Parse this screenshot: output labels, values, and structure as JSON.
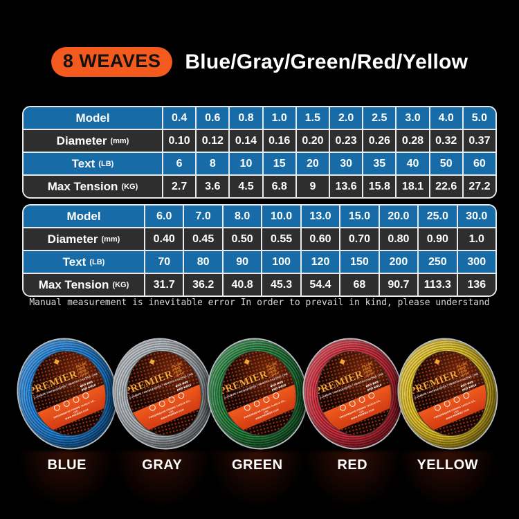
{
  "header": {
    "badge": "8 WEAVES",
    "title": "Blue/Gray/Green/Red/Yellow"
  },
  "colors": {
    "background": "#000000",
    "accent_orange": "#F4591D",
    "table_header_blue": "#176CA8",
    "table_row_dark": "#2E2E2E",
    "table_border": "#E8EBEE",
    "band_orange": "#E84D1B",
    "brand_gold": "#F3A63A"
  },
  "tables": [
    {
      "rows": [
        {
          "label": "Model",
          "unit": "",
          "values": [
            "0.4",
            "0.6",
            "0.8",
            "1.0",
            "1.5",
            "2.0",
            "2.5",
            "3.0",
            "4.0",
            "5.0"
          ]
        },
        {
          "label": "Diameter",
          "unit": "(mm)",
          "values": [
            "0.10",
            "0.12",
            "0.14",
            "0.16",
            "0.20",
            "0.23",
            "0.26",
            "0.28",
            "0.32",
            "0.37"
          ]
        },
        {
          "label": "Text",
          "unit": "(LB)",
          "values": [
            "6",
            "8",
            "10",
            "15",
            "20",
            "30",
            "35",
            "40",
            "50",
            "60"
          ]
        },
        {
          "label": "Max Tension",
          "unit": "(KG)",
          "values": [
            "2.7",
            "3.6",
            "4.5",
            "6.8",
            "9",
            "13.6",
            "15.8",
            "18.1",
            "22.6",
            "27.2"
          ]
        }
      ]
    },
    {
      "rows": [
        {
          "label": "Model",
          "unit": "",
          "values": [
            "6.0",
            "7.0",
            "8.0",
            "10.0",
            "13.0",
            "15.0",
            "20.0",
            "25.0",
            "30.0"
          ]
        },
        {
          "label": "Diameter",
          "unit": "(mm)",
          "values": [
            "0.40",
            "0.45",
            "0.50",
            "0.55",
            "0.60",
            "0.70",
            "0.80",
            "0.90",
            "1.0"
          ]
        },
        {
          "label": "Text",
          "unit": "(LB)",
          "values": [
            "70",
            "80",
            "90",
            "100",
            "120",
            "150",
            "200",
            "250",
            "300"
          ]
        },
        {
          "label": "Max Tension",
          "unit": "(KG)",
          "values": [
            "31.7",
            "36.2",
            "40.8",
            "45.3",
            "54.4",
            "68",
            "90.7",
            "113.3",
            "136"
          ]
        }
      ]
    }
  ],
  "disclaimer": "Manual measurement is inevitable error In order to prevail in kind, please understand",
  "spool_label": {
    "brand": "PREMIER",
    "side_note": "PE LINE FIBER\nFROM JAPAN",
    "tagline": "U-HMWPE / MICROFIBERS / SMOOTH CASTING LINE",
    "weave_marks": "■W4 ■W8\n■W9 ■W16",
    "company": "PROGRESSIVE FISHING TACKLE CO., LTD\nWWW.PREMIER.COM"
  },
  "spools": [
    {
      "name": "BLUE",
      "line_color": "#2B8FE0",
      "line_shade": "#12579C"
    },
    {
      "name": "GRAY",
      "line_color": "#B9BEC2",
      "line_shade": "#787E84"
    },
    {
      "name": "GREEN",
      "line_color": "#2F9448",
      "line_shade": "#174F26"
    },
    {
      "name": "RED",
      "line_color": "#E03545",
      "line_shade": "#8E1B28"
    },
    {
      "name": "YELLOW",
      "line_color": "#E6CB32",
      "line_shade": "#A98A14"
    }
  ]
}
